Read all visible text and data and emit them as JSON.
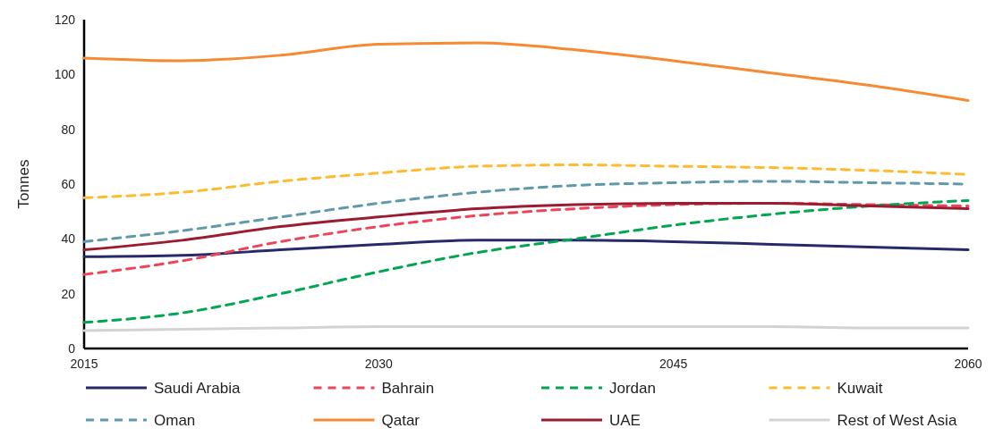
{
  "chart_data": {
    "type": "line",
    "ylabel": "Tonnes",
    "x": [
      2015,
      2020,
      2025,
      2030,
      2035,
      2040,
      2045,
      2050,
      2055,
      2060
    ],
    "xlim": [
      2015,
      2060
    ],
    "xticks": [
      2015,
      2030,
      2045,
      2060
    ],
    "ylim": [
      0,
      120
    ],
    "yticks": [
      0,
      20,
      40,
      60,
      80,
      100,
      120
    ],
    "grid": false,
    "legend": "bottom",
    "marker": "none",
    "series": [
      {
        "name": "Saudi Arabia",
        "color": "#262a6a",
        "line_style": "solid",
        "values": [
          33.5,
          34,
          36,
          38,
          39.5,
          39.5,
          39,
          38,
          37,
          36
        ]
      },
      {
        "name": "Bahrain",
        "color": "#ee4459",
        "line_style": "dashed",
        "values": [
          27,
          32,
          39,
          44.5,
          48.5,
          51,
          52.5,
          53,
          52.5,
          52
        ]
      },
      {
        "name": "Jordan",
        "color": "#00a651",
        "line_style": "dashed",
        "values": [
          9.5,
          13,
          20,
          28,
          35,
          40,
          45,
          49,
          52,
          54
        ]
      },
      {
        "name": "Kuwait",
        "color": "#fdbb2f",
        "line_style": "dashed",
        "values": [
          55,
          57,
          61,
          64,
          66.5,
          67,
          66.5,
          66,
          65,
          63.5
        ]
      },
      {
        "name": "Oman",
        "color": "#5f9aab",
        "line_style": "dashed",
        "values": [
          39,
          43,
          48,
          53,
          57,
          59.5,
          60.5,
          61,
          60.5,
          60
        ]
      },
      {
        "name": "Qatar",
        "color": "#f58a32",
        "line_style": "solid",
        "values": [
          106,
          105,
          107,
          111,
          111.5,
          109,
          105,
          100.5,
          96,
          90.5
        ]
      },
      {
        "name": "UAE",
        "color": "#9b1b30",
        "line_style": "solid",
        "values": [
          36,
          39.5,
          44.5,
          48,
          51,
          52.5,
          53,
          53,
          52,
          51
        ]
      },
      {
        "name": "Rest of West Asia",
        "color": "#d3d3d3",
        "line_style": "solid",
        "values": [
          6.5,
          7,
          7.5,
          8,
          8,
          8,
          8,
          8,
          7.5,
          7.5
        ]
      }
    ]
  }
}
